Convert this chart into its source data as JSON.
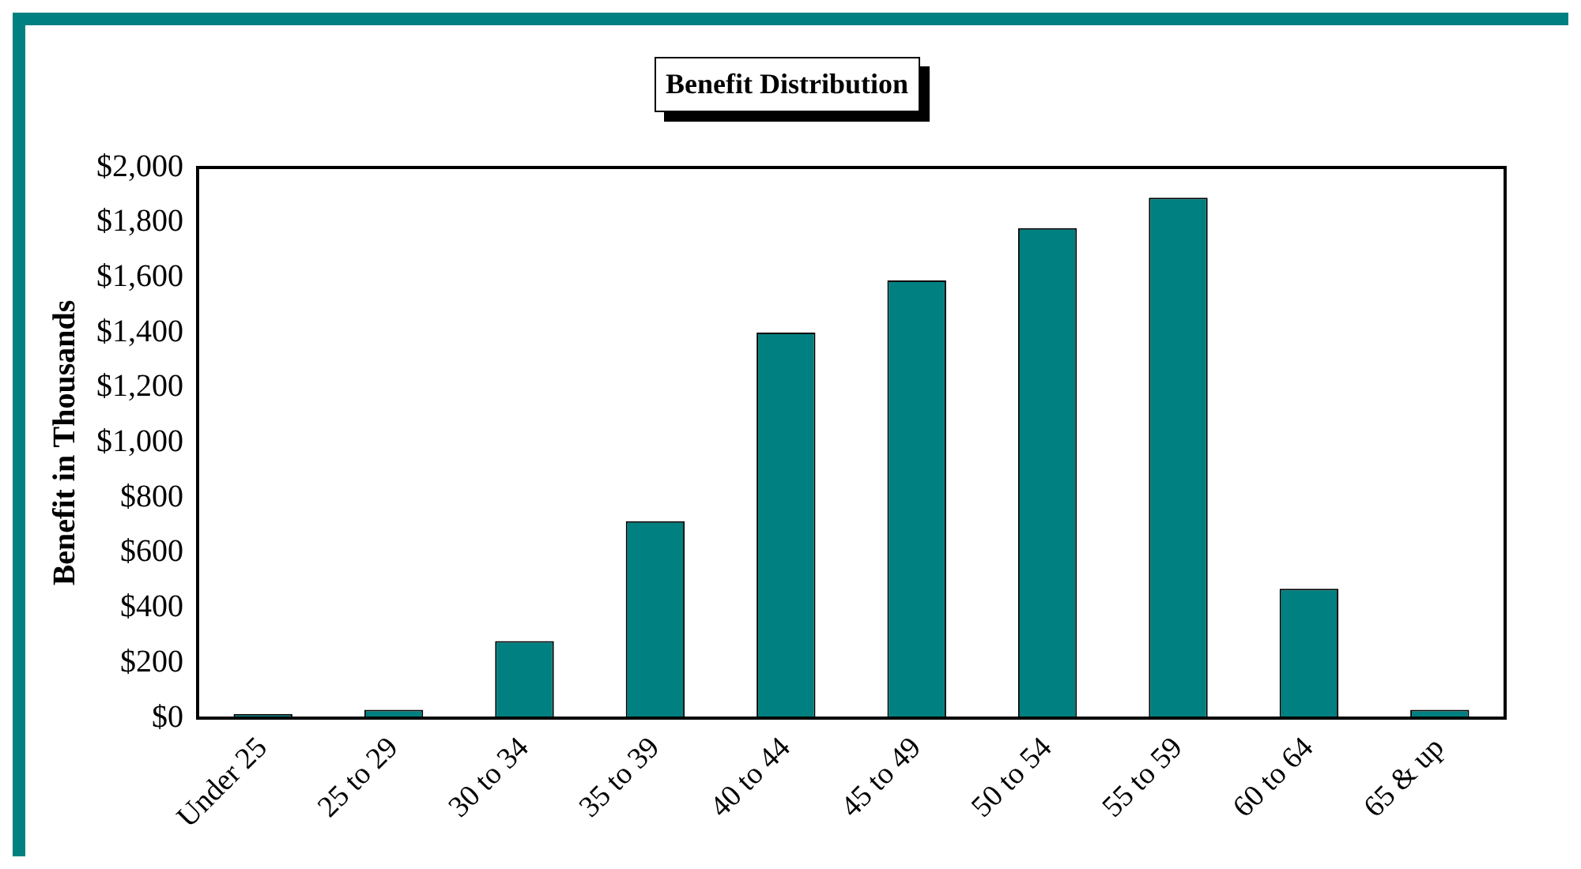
{
  "chart_data": {
    "type": "bar",
    "title": "Benefit Distribution",
    "ylabel": "Benefit in Thousands",
    "categories": [
      "Under 25",
      "25 to 29",
      "30 to 34",
      "35 to 39",
      "40 to 44",
      "45 to 49",
      "50 to 54",
      "55 to 59",
      "60 to 64",
      "65 & up"
    ],
    "values": [
      15,
      30,
      280,
      715,
      1400,
      1590,
      1780,
      1890,
      470,
      30
    ],
    "color": "#008080",
    "ylim": [
      0,
      2000
    ],
    "yticks": [
      {
        "value": 0,
        "label": "$0"
      },
      {
        "value": 200,
        "label": "$200"
      },
      {
        "value": 400,
        "label": "$400"
      },
      {
        "value": 600,
        "label": "$600"
      },
      {
        "value": 800,
        "label": "$800"
      },
      {
        "value": 1000,
        "label": "$1,000"
      },
      {
        "value": 1200,
        "label": "$1,200"
      },
      {
        "value": 1400,
        "label": "$1,400"
      },
      {
        "value": 1600,
        "label": "$1,600"
      },
      {
        "value": 1800,
        "label": "$1,800"
      },
      {
        "value": 2000,
        "label": "$2,000"
      }
    ],
    "grid": false,
    "legend": false
  }
}
